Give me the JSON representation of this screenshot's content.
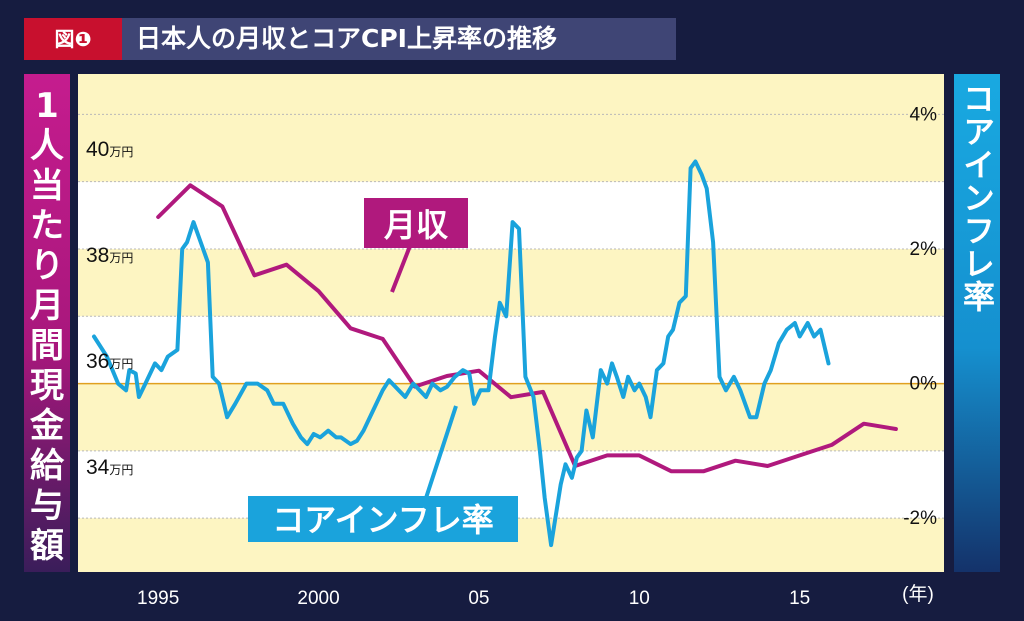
{
  "header": {
    "badge": "図❶",
    "title": "日本人の月収とコアCPI上昇率の推移"
  },
  "left_axis_title": "1人当たり月間現金給与額",
  "right_axis_title": "コアインフレ率",
  "colors": {
    "income": "#b0197d",
    "inflation": "#1aa3dc",
    "band_yellow": "#fdf5c2",
    "band_white": "#ffffff",
    "zero_line": "#e0a020"
  },
  "series_labels": {
    "income": "月収",
    "inflation": "コアインフレ率"
  },
  "chart_data": {
    "type": "line",
    "title": "日本人の月収とコアCPI上昇率の推移",
    "x_range": [
      1992.5,
      2019.5
    ],
    "x_ticks": [
      {
        "value": 1995,
        "label": "1995"
      },
      {
        "value": 2000,
        "label": "2000"
      },
      {
        "value": 2005,
        "label": "05"
      },
      {
        "value": 2010,
        "label": "10"
      },
      {
        "value": 2015,
        "label": "15"
      }
    ],
    "x_unit_label": "(年)",
    "left_axis": {
      "label": "1人当たり月間現金給与額",
      "range": [
        32.0,
        41.4
      ],
      "ticks": [
        {
          "value": 40,
          "num": "40",
          "unit": "万円"
        },
        {
          "value": 38,
          "num": "38",
          "unit": "万円"
        },
        {
          "value": 36,
          "num": "36",
          "unit": "万円"
        },
        {
          "value": 34,
          "num": "34",
          "unit": "万円"
        }
      ]
    },
    "right_axis": {
      "label": "コアインフレ率",
      "range": [
        -2.8,
        4.6
      ],
      "ticks": [
        {
          "value": 4,
          "label": "4%"
        },
        {
          "value": 2,
          "label": "2%"
        },
        {
          "value": 0,
          "label": "0%"
        },
        {
          "value": -2,
          "label": "-2%"
        }
      ]
    },
    "series": [
      {
        "name": "月収",
        "axis": "left",
        "color": "#b0197d",
        "points": [
          [
            1995,
            38.7
          ],
          [
            1996,
            39.3
          ],
          [
            1997,
            38.9
          ],
          [
            1998,
            37.6
          ],
          [
            1999,
            37.8
          ],
          [
            2000,
            37.3
          ],
          [
            2001,
            36.6
          ],
          [
            2002,
            36.4
          ],
          [
            2003,
            35.5
          ],
          [
            2004,
            35.7
          ],
          [
            2005,
            35.8
          ],
          [
            2006,
            35.3
          ],
          [
            2007,
            35.4
          ],
          [
            2008,
            34.0
          ],
          [
            2009,
            34.2
          ],
          [
            2010,
            34.2
          ],
          [
            2011,
            33.9
          ],
          [
            2012,
            33.9
          ],
          [
            2013,
            34.1
          ],
          [
            2014,
            34.0
          ],
          [
            2015,
            34.2
          ],
          [
            2016,
            34.4
          ],
          [
            2017,
            34.8
          ],
          [
            2018,
            34.7
          ]
        ]
      },
      {
        "name": "コアインフレ率",
        "axis": "right",
        "color": "#1aa3dc",
        "points": [
          [
            1993.0,
            0.7
          ],
          [
            1993.4,
            0.4
          ],
          [
            1993.75,
            0.0
          ],
          [
            1994.0,
            -0.1
          ],
          [
            1994.1,
            0.2
          ],
          [
            1994.3,
            0.15
          ],
          [
            1994.4,
            -0.2
          ],
          [
            1994.6,
            0.0
          ],
          [
            1994.9,
            0.3
          ],
          [
            1995.1,
            0.2
          ],
          [
            1995.3,
            0.4
          ],
          [
            1995.6,
            0.5
          ],
          [
            1995.75,
            2.0
          ],
          [
            1995.9,
            2.1
          ],
          [
            1996.1,
            2.4
          ],
          [
            1996.25,
            2.2
          ],
          [
            1996.55,
            1.8
          ],
          [
            1996.7,
            0.1
          ],
          [
            1996.9,
            0.0
          ],
          [
            1997.15,
            -0.5
          ],
          [
            1997.4,
            -0.3
          ],
          [
            1997.75,
            0.0
          ],
          [
            1998.1,
            0.0
          ],
          [
            1998.4,
            -0.1
          ],
          [
            1998.6,
            -0.3
          ],
          [
            1998.9,
            -0.3
          ],
          [
            1999.2,
            -0.6
          ],
          [
            1999.45,
            -0.8
          ],
          [
            1999.65,
            -0.9
          ],
          [
            1999.85,
            -0.75
          ],
          [
            2000.05,
            -0.8
          ],
          [
            2000.3,
            -0.7
          ],
          [
            2000.55,
            -0.8
          ],
          [
            2000.7,
            -0.8
          ],
          [
            2001.0,
            -0.9
          ],
          [
            2001.2,
            -0.85
          ],
          [
            2001.4,
            -0.7
          ],
          [
            2001.7,
            -0.4
          ],
          [
            2002.0,
            -0.1
          ],
          [
            2002.2,
            0.05
          ],
          [
            2002.5,
            -0.1
          ],
          [
            2002.7,
            -0.2
          ],
          [
            2002.95,
            0.0
          ],
          [
            2003.15,
            -0.1
          ],
          [
            2003.35,
            -0.2
          ],
          [
            2003.55,
            0.0
          ],
          [
            2003.8,
            -0.1
          ],
          [
            2004.0,
            -0.05
          ],
          [
            2004.25,
            0.1
          ],
          [
            2004.5,
            0.2
          ],
          [
            2004.7,
            0.15
          ],
          [
            2004.85,
            -0.3
          ],
          [
            2005.05,
            -0.1
          ],
          [
            2005.3,
            -0.1
          ],
          [
            2005.5,
            0.7
          ],
          [
            2005.65,
            1.2
          ],
          [
            2005.85,
            1.0
          ],
          [
            2006.05,
            2.4
          ],
          [
            2006.25,
            2.3
          ],
          [
            2006.45,
            0.1
          ],
          [
            2006.7,
            -0.2
          ],
          [
            2006.9,
            -1.0
          ],
          [
            2007.05,
            -1.7
          ],
          [
            2007.25,
            -2.4
          ],
          [
            2007.55,
            -1.5
          ],
          [
            2007.7,
            -1.2
          ],
          [
            2007.9,
            -1.4
          ],
          [
            2008.05,
            -1.1
          ],
          [
            2008.2,
            -1.0
          ],
          [
            2008.35,
            -0.4
          ],
          [
            2008.55,
            -0.8
          ],
          [
            2008.8,
            0.2
          ],
          [
            2009.0,
            0.0
          ],
          [
            2009.15,
            0.3
          ],
          [
            2009.3,
            0.1
          ],
          [
            2009.5,
            -0.2
          ],
          [
            2009.65,
            0.1
          ],
          [
            2009.85,
            -0.1
          ],
          [
            2010.0,
            0.0
          ],
          [
            2010.2,
            -0.2
          ],
          [
            2010.35,
            -0.5
          ],
          [
            2010.55,
            0.2
          ],
          [
            2010.75,
            0.3
          ],
          [
            2010.9,
            0.7
          ],
          [
            2011.05,
            0.8
          ],
          [
            2011.25,
            1.2
          ],
          [
            2011.45,
            1.3
          ],
          [
            2011.6,
            3.2
          ],
          [
            2011.75,
            3.3
          ],
          [
            2011.95,
            3.1
          ],
          [
            2012.1,
            2.9
          ],
          [
            2012.3,
            2.1
          ],
          [
            2012.5,
            0.1
          ],
          [
            2012.7,
            -0.1
          ],
          [
            2012.95,
            0.1
          ],
          [
            2013.15,
            -0.1
          ],
          [
            2013.45,
            -0.5
          ],
          [
            2013.65,
            -0.5
          ],
          [
            2013.9,
            0.0
          ],
          [
            2014.1,
            0.2
          ],
          [
            2014.35,
            0.6
          ],
          [
            2014.6,
            0.8
          ],
          [
            2014.85,
            0.9
          ],
          [
            2015.0,
            0.7
          ],
          [
            2015.25,
            0.9
          ],
          [
            2015.45,
            0.7
          ],
          [
            2015.65,
            0.8
          ],
          [
            2015.9,
            0.3
          ]
        ]
      }
    ],
    "annotations": [
      "月収",
      "コアインフレ率"
    ]
  }
}
